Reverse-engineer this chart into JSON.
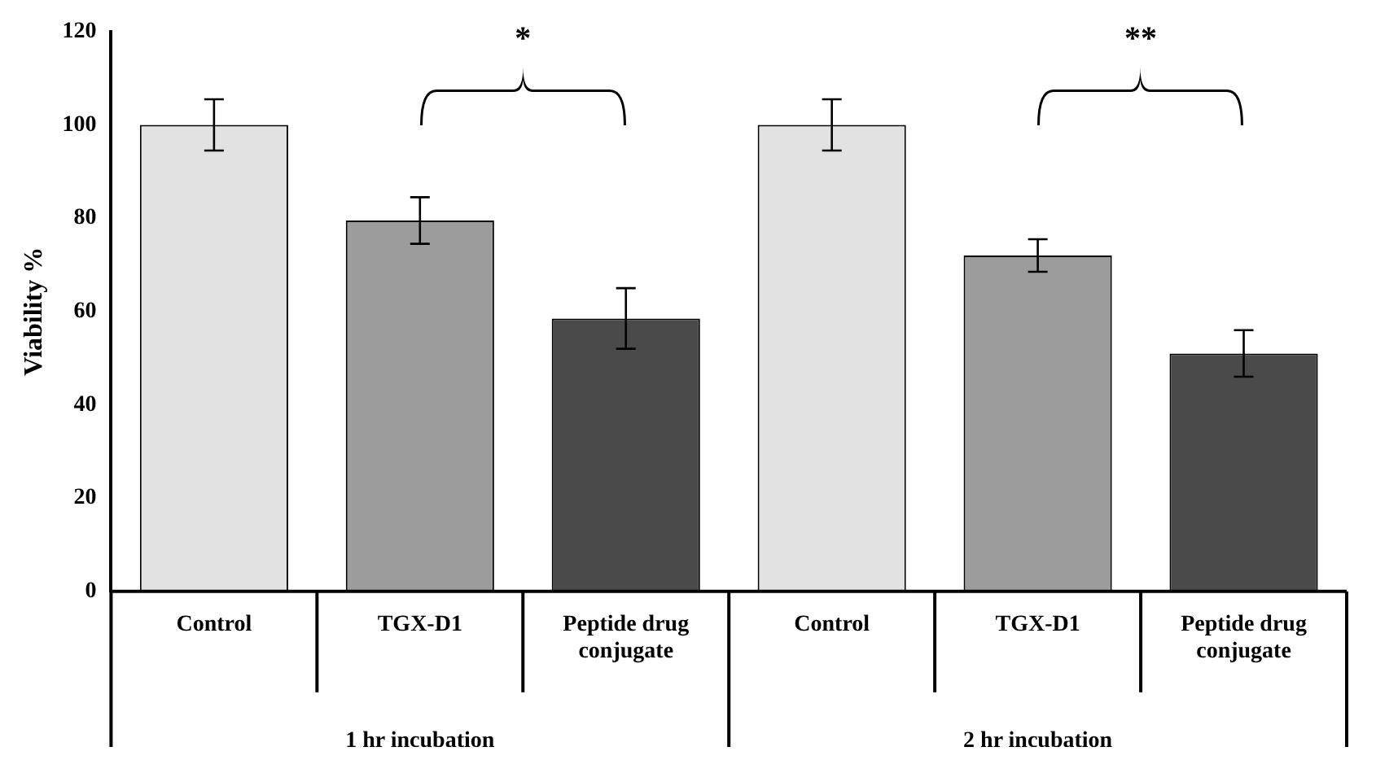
{
  "chart_data": {
    "type": "bar",
    "ylabel": "Viability %",
    "categories": [
      "Control",
      "TGX-D1",
      "Peptide drug conjugate",
      "Control",
      "TGX-D1",
      "Peptide drug conjugate"
    ],
    "values": [
      100,
      79.5,
      58.5,
      100,
      72,
      51
    ],
    "errors": [
      5.5,
      5,
      6.5,
      5.5,
      3.5,
      5
    ],
    "colors": [
      "#e2e2e2",
      "#9c9c9c",
      "#4a4a4a",
      "#e2e2e2",
      "#9c9c9c",
      "#4a4a4a"
    ],
    "ylim": [
      0,
      120
    ],
    "yticks": [
      0,
      20,
      40,
      60,
      80,
      100,
      120
    ],
    "grid": false,
    "legend": false,
    "annotations": [
      "*",
      "**",
      "1 hr incubation",
      "2 hr incubation"
    ]
  }
}
